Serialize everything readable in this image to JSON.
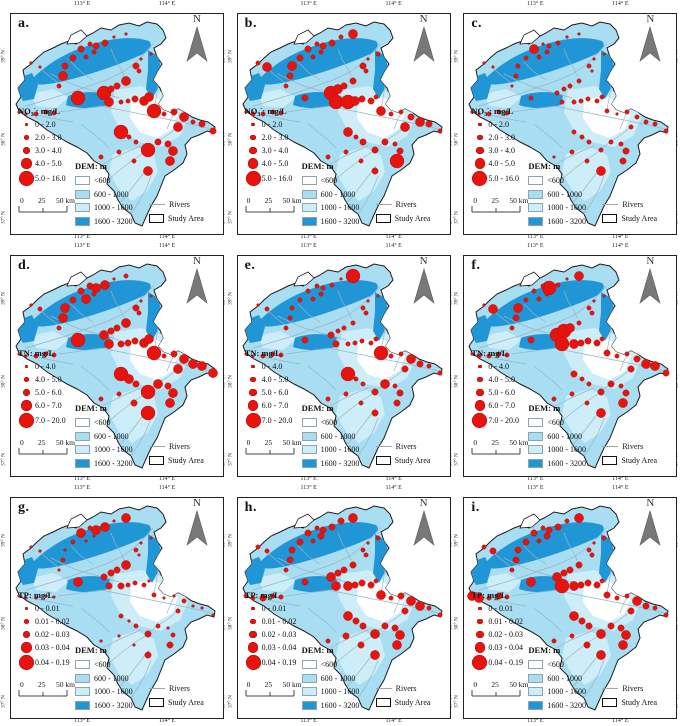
{
  "colors": {
    "dot": "#e8130d",
    "dot_stroke": "#a50f0f",
    "basin_base": "#a9ddf2",
    "dem_light": "#cdeef9",
    "dem_dark": "#2196d6",
    "dem_low_white": "#ffffff",
    "river": "#95b5c6",
    "outline": "#1a1a1a",
    "north_arrow": "#787878"
  },
  "shared": {
    "north_label": "N",
    "scale_ticks": [
      "0",
      "25",
      "50 km"
    ],
    "dem": {
      "title": "DEM: m",
      "classes": [
        "<600",
        "600 - 1000",
        "1000 - 1600",
        "1600 - 3200"
      ],
      "swatches": [
        "#ffffff",
        "#a9ddf2",
        "#cdeef9",
        "#2196d6"
      ]
    },
    "rivers_label": "Rivers",
    "study_area_label": "Study Area",
    "axis": {
      "top": [
        "113° E",
        "114° E"
      ],
      "bottom": [
        "113° E",
        "114° E"
      ],
      "left": [
        "39° N",
        "38° N",
        "37° N"
      ],
      "right": [
        "39° N",
        "38° N",
        "37° N"
      ]
    }
  },
  "legend_diameters": [
    3.5,
    5.5,
    7.5,
    10.5,
    15
  ],
  "dot_radii": [
    1.4,
    2.2,
    3.2,
    4.6,
    7
  ],
  "sites": [
    [
      103,
      23
    ],
    [
      115,
      20
    ],
    [
      94,
      29
    ],
    [
      85,
      32
    ],
    [
      79,
      30
    ],
    [
      70,
      35
    ],
    [
      83,
      38
    ],
    [
      75,
      43
    ],
    [
      62,
      44
    ],
    [
      54,
      52
    ],
    [
      20,
      49
    ],
    [
      29,
      53
    ],
    [
      52,
      62
    ],
    [
      48,
      72
    ],
    [
      67,
      84
    ],
    [
      93,
      79
    ],
    [
      100,
      75
    ],
    [
      106,
      72
    ],
    [
      115,
      67
    ],
    [
      125,
      52
    ],
    [
      128,
      57
    ],
    [
      98,
      88
    ],
    [
      110,
      88
    ],
    [
      117,
      87
    ],
    [
      124,
      85
    ],
    [
      133,
      87
    ],
    [
      138,
      83
    ],
    [
      143,
      97
    ],
    [
      153,
      100
    ],
    [
      163,
      98
    ],
    [
      173,
      103
    ],
    [
      182,
      108
    ],
    [
      191,
      110
    ],
    [
      202,
      117
    ],
    [
      167,
      113
    ],
    [
      110,
      118
    ],
    [
      118,
      123
    ],
    [
      125,
      128
    ],
    [
      137,
      136
    ],
    [
      147,
      128
    ],
    [
      157,
      130
    ],
    [
      162,
      137
    ],
    [
      159,
      147
    ],
    [
      137,
      157
    ],
    [
      123,
      147
    ],
    [
      108,
      138
    ],
    [
      90,
      143
    ],
    [
      8,
      98
    ],
    [
      15,
      100
    ],
    [
      25,
      100
    ],
    [
      35,
      98
    ],
    [
      43,
      99
    ],
    [
      130,
      45
    ],
    [
      140,
      40
    ]
  ],
  "panels": [
    {
      "letter": "a.",
      "param": {
        "prefix": "NO",
        "sub": "3",
        "sup": "-",
        "rest": ": mg/L"
      },
      "classes": [
        "0 - 2.0",
        "2.0 - 3.0",
        "3.0 - 4.0",
        "4.0 - 5.0",
        "5.0 - 16.0"
      ],
      "dot_sizes": [
        1,
        1,
        3,
        3,
        2,
        3,
        2,
        2,
        3,
        3,
        1,
        1,
        4,
        2,
        5,
        5,
        3,
        3,
        4,
        3,
        2,
        4,
        2,
        2,
        3,
        4,
        4,
        5,
        2,
        3,
        4,
        2,
        3,
        3,
        4,
        5,
        2,
        2,
        5,
        3,
        3,
        4,
        4,
        4,
        2,
        2,
        2,
        1,
        1,
        2,
        2,
        2,
        1,
        1
      ]
    },
    {
      "letter": "b.",
      "param": {
        "prefix": "NO",
        "sub": "3",
        "sup": "-",
        "rest": ": mg/L"
      },
      "classes": [
        "0 - 2.0",
        "2.0 - 3.0",
        "3.0 - 4.0",
        "4.0 - 5.0",
        "5.0 - 16.0"
      ],
      "dot_sizes": [
        2,
        4,
        3,
        3,
        2,
        3,
        2,
        2,
        3,
        4,
        2,
        4,
        3,
        2,
        3,
        5,
        4,
        3,
        3,
        3,
        2,
        5,
        5,
        4,
        3,
        3,
        2,
        4,
        2,
        2,
        3,
        4,
        3,
        2,
        4,
        4,
        2,
        3,
        3,
        3,
        2,
        3,
        5,
        3,
        2,
        2,
        2,
        1,
        2,
        2,
        2,
        2,
        1,
        2
      ]
    },
    {
      "letter": "c.",
      "param": {
        "prefix": "NO",
        "sub": "3",
        "sup": "-",
        "rest": ": mg/L"
      },
      "classes": [
        "0 - 2.0",
        "2.0 - 3.0",
        "3.0 - 4.0",
        "4.0 - 5.0",
        "5.0 - 16.0"
      ],
      "dot_sizes": [
        1,
        1,
        2,
        2,
        1,
        4,
        2,
        2,
        2,
        2,
        1,
        1,
        2,
        1,
        2,
        2,
        2,
        2,
        2,
        2,
        1,
        2,
        2,
        2,
        2,
        2,
        2,
        2,
        1,
        2,
        2,
        2,
        2,
        2,
        2,
        2,
        2,
        2,
        2,
        2,
        2,
        3,
        3,
        4,
        2,
        2,
        1,
        1,
        1,
        2,
        2,
        2,
        1,
        1
      ]
    },
    {
      "letter": "d.",
      "param": {
        "prefix": "TN",
        "sub": "",
        "sup": "",
        "rest": ": mg/L"
      },
      "classes": [
        "0 - 4.0",
        "4.0 - 5.0",
        "5.0 - 6.0",
        "6.0 - 7.0",
        "7.0 - 20.0"
      ],
      "dot_sizes": [
        1,
        2,
        4,
        4,
        3,
        3,
        2,
        4,
        3,
        4,
        1,
        2,
        4,
        2,
        5,
        4,
        3,
        3,
        4,
        3,
        2,
        4,
        3,
        3,
        3,
        4,
        4,
        5,
        2,
        3,
        4,
        4,
        4,
        4,
        4,
        5,
        4,
        3,
        5,
        4,
        3,
        4,
        4,
        5,
        3,
        2,
        2,
        1,
        1,
        2,
        2,
        2,
        1,
        1
      ]
    },
    {
      "letter": "e.",
      "param": {
        "prefix": "TN",
        "sub": "",
        "sup": "",
        "rest": ": mg/L"
      },
      "classes": [
        "0 - 4.0",
        "4.0 - 5.0",
        "5.0 - 6.0",
        "6.0 - 7.0",
        "7.0 - 20.0"
      ],
      "dot_sizes": [
        1,
        5,
        2,
        2,
        2,
        2,
        2,
        2,
        2,
        2,
        1,
        2,
        2,
        2,
        3,
        3,
        2,
        2,
        2,
        2,
        2,
        3,
        2,
        2,
        2,
        2,
        2,
        5,
        2,
        2,
        4,
        3,
        2,
        2,
        3,
        5,
        2,
        2,
        3,
        4,
        2,
        3,
        3,
        3,
        2,
        2,
        2,
        1,
        1,
        2,
        2,
        2,
        1,
        1
      ]
    },
    {
      "letter": "f.",
      "param": {
        "prefix": "TN",
        "sub": "",
        "sup": "",
        "rest": ": mg/L"
      },
      "classes": [
        "0 - 4.0",
        "4.0 - 5.0",
        "5.0 - 6.0",
        "6.0 - 7.0",
        "7.0 - 20.0"
      ],
      "dot_sizes": [
        1,
        4,
        2,
        5,
        2,
        2,
        2,
        2,
        2,
        4,
        1,
        4,
        3,
        2,
        3,
        5,
        5,
        4,
        2,
        2,
        2,
        5,
        4,
        3,
        3,
        3,
        2,
        3,
        2,
        2,
        3,
        4,
        4,
        3,
        3,
        3,
        2,
        2,
        3,
        3,
        2,
        3,
        4,
        4,
        2,
        2,
        2,
        1,
        2,
        2,
        2,
        2,
        1,
        1
      ]
    },
    {
      "letter": "g.",
      "param": {
        "prefix": "TP",
        "sub": "",
        "sup": "",
        "rest": ": mg/L"
      },
      "classes": [
        "0 - 0.01",
        "0.01 - 0.02",
        "0.02 - 0.03",
        "0.03 - 0.04",
        "0.04 - 0.19"
      ],
      "dot_sizes": [
        1,
        4,
        4,
        4,
        2,
        4,
        1,
        1,
        2,
        1,
        1,
        1,
        2,
        1,
        4,
        3,
        3,
        3,
        4,
        2,
        1,
        3,
        3,
        2,
        2,
        2,
        1,
        2,
        1,
        1,
        2,
        1,
        1,
        1,
        2,
        2,
        1,
        2,
        3,
        2,
        1,
        2,
        3,
        3,
        1,
        1,
        1,
        1,
        1,
        1,
        1,
        1,
        1,
        1
      ]
    },
    {
      "letter": "h.",
      "param": {
        "prefix": "TP",
        "sub": "",
        "sup": "",
        "rest": ": mg/L"
      },
      "classes": [
        "0 - 0.01",
        "0.01 - 0.02",
        "0.02 - 0.03",
        "0.03 - 0.04",
        "0.04 - 0.19"
      ],
      "dot_sizes": [
        3,
        4,
        3,
        3,
        2,
        3,
        3,
        2,
        3,
        3,
        2,
        2,
        3,
        2,
        3,
        4,
        3,
        3,
        3,
        2,
        2,
        4,
        4,
        3,
        3,
        3,
        2,
        4,
        2,
        3,
        4,
        4,
        2,
        2,
        3,
        4,
        3,
        3,
        4,
        3,
        3,
        4,
        4,
        4,
        3,
        3,
        2,
        2,
        2,
        3,
        2,
        2,
        1,
        2
      ]
    },
    {
      "letter": "i.",
      "param": {
        "prefix": "TP",
        "sub": "",
        "sup": "",
        "rest": ": mg/L"
      },
      "classes": [
        "0 - 0.01",
        "0.01 - 0.02",
        "0.02 - 0.03",
        "0.03 - 0.04",
        "0.04 - 0.19"
      ],
      "dot_sizes": [
        2,
        4,
        3,
        3,
        2,
        3,
        3,
        2,
        3,
        3,
        2,
        3,
        3,
        2,
        4,
        4,
        3,
        3,
        3,
        2,
        2,
        5,
        4,
        3,
        3,
        3,
        2,
        3,
        2,
        2,
        4,
        3,
        2,
        2,
        3,
        4,
        3,
        3,
        4,
        3,
        3,
        4,
        4,
        4,
        3,
        2,
        2,
        4,
        4,
        2,
        3,
        2,
        1,
        2
      ]
    }
  ]
}
